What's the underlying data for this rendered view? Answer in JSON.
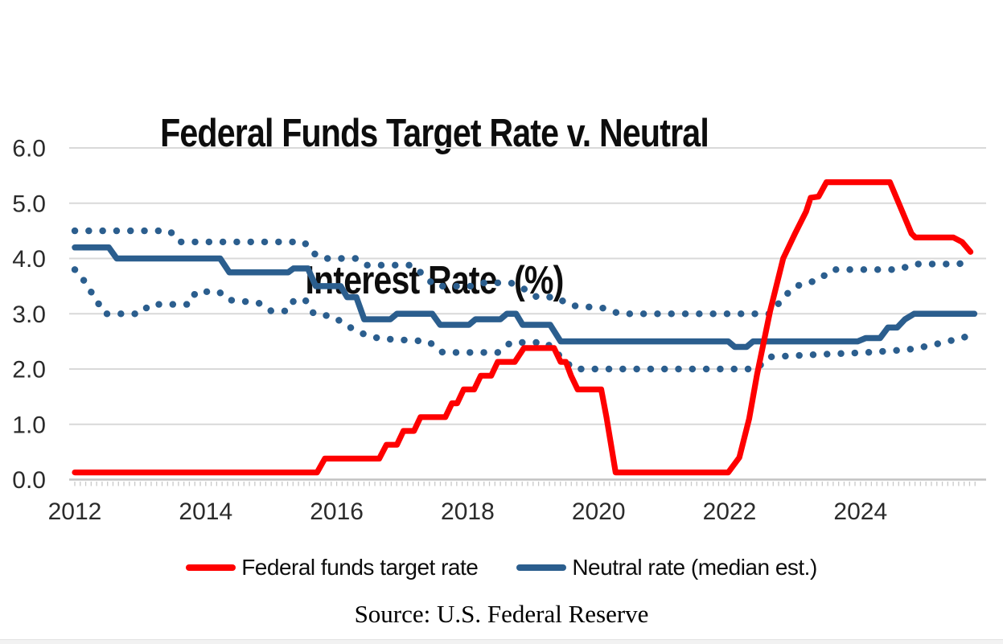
{
  "title": {
    "line1": "Federal Funds Target Rate v. Neutral",
    "line2": "Interest Rate  (%)"
  },
  "source_caption": "Source: U.S. Federal Reserve",
  "legend": {
    "items": [
      {
        "label": "Federal funds target rate",
        "color": "#FE0000",
        "style": "solid"
      },
      {
        "label": "Neutral rate (median est.)",
        "color": "#2B5E8E",
        "style": "solid"
      }
    ]
  },
  "colors": {
    "red_line": "#FE0000",
    "blue_line": "#2B5E8E",
    "gridline": "#D9D9D9",
    "axis_line": "#C2C2C2",
    "minor_tick": "#C9C9C9",
    "tick_label": "#2B2B2B",
    "background": "#FFFFFF",
    "footer_strip": "#F2F2F2"
  },
  "chart_data": {
    "type": "line",
    "title": "Federal Funds Target Rate v. Neutral Interest Rate (%)",
    "source_annotation": "Source: U.S. Federal Reserve",
    "legend_position": "bottom",
    "x_axis": {
      "range": [
        2011.9,
        2025.95
      ],
      "tick_labels": [
        "2012",
        "2014",
        "2016",
        "2018",
        "2020",
        "2022",
        "2024"
      ],
      "tick_values": [
        2012,
        2014,
        2016,
        2018,
        2020,
        2022,
        2024
      ],
      "minor_ticks": "monthly"
    },
    "y_axis": {
      "range": [
        0,
        6
      ],
      "tick_labels": [
        "0.0",
        "1.0",
        "2.0",
        "3.0",
        "4.0",
        "5.0",
        "6.0"
      ],
      "tick_values": [
        0,
        1,
        2,
        3,
        4,
        5,
        6
      ],
      "gridlines": true
    },
    "series": [
      {
        "name": "Federal funds target rate",
        "color": "#FE0000",
        "line_style": "solid",
        "in_legend": true,
        "points": [
          [
            2012.0,
            0.13
          ],
          [
            2015.7,
            0.13
          ],
          [
            2015.82,
            0.38
          ],
          [
            2016.65,
            0.38
          ],
          [
            2016.76,
            0.63
          ],
          [
            2016.92,
            0.63
          ],
          [
            2017.02,
            0.88
          ],
          [
            2017.18,
            0.88
          ],
          [
            2017.28,
            1.13
          ],
          [
            2017.66,
            1.13
          ],
          [
            2017.76,
            1.38
          ],
          [
            2017.84,
            1.38
          ],
          [
            2017.94,
            1.63
          ],
          [
            2018.1,
            1.63
          ],
          [
            2018.2,
            1.88
          ],
          [
            2018.36,
            1.88
          ],
          [
            2018.46,
            2.13
          ],
          [
            2018.72,
            2.13
          ],
          [
            2018.86,
            2.38
          ],
          [
            2019.32,
            2.38
          ],
          [
            2019.42,
            2.13
          ],
          [
            2019.5,
            2.13
          ],
          [
            2019.58,
            1.88
          ],
          [
            2019.68,
            1.63
          ],
          [
            2020.04,
            1.63
          ],
          [
            2020.12,
            1.13
          ],
          [
            2020.26,
            0.13
          ],
          [
            2021.98,
            0.13
          ],
          [
            2022.15,
            0.4
          ],
          [
            2022.3,
            1.1
          ],
          [
            2022.42,
            1.9
          ],
          [
            2022.62,
            3.05
          ],
          [
            2022.82,
            4.0
          ],
          [
            2023.0,
            4.45
          ],
          [
            2023.17,
            4.85
          ],
          [
            2023.24,
            5.1
          ],
          [
            2023.36,
            5.12
          ],
          [
            2023.48,
            5.38
          ],
          [
            2024.45,
            5.38
          ],
          [
            2024.62,
            4.9
          ],
          [
            2024.78,
            4.45
          ],
          [
            2024.84,
            4.38
          ],
          [
            2025.42,
            4.38
          ],
          [
            2025.55,
            4.3
          ],
          [
            2025.68,
            4.12
          ]
        ]
      },
      {
        "name": "Neutral rate (median est.)",
        "color": "#2B5E8E",
        "line_style": "solid",
        "in_legend": true,
        "points": [
          [
            2012.0,
            4.2
          ],
          [
            2012.52,
            4.2
          ],
          [
            2012.64,
            4.0
          ],
          [
            2014.22,
            4.0
          ],
          [
            2014.36,
            3.75
          ],
          [
            2015.26,
            3.75
          ],
          [
            2015.34,
            3.82
          ],
          [
            2015.56,
            3.82
          ],
          [
            2015.68,
            3.5
          ],
          [
            2016.06,
            3.5
          ],
          [
            2016.16,
            3.3
          ],
          [
            2016.3,
            3.3
          ],
          [
            2016.42,
            2.9
          ],
          [
            2016.82,
            2.9
          ],
          [
            2016.92,
            3.0
          ],
          [
            2017.46,
            3.0
          ],
          [
            2017.58,
            2.8
          ],
          [
            2018.02,
            2.8
          ],
          [
            2018.12,
            2.9
          ],
          [
            2018.5,
            2.9
          ],
          [
            2018.6,
            3.0
          ],
          [
            2018.74,
            3.0
          ],
          [
            2018.84,
            2.8
          ],
          [
            2019.26,
            2.8
          ],
          [
            2019.42,
            2.5
          ],
          [
            2021.98,
            2.5
          ],
          [
            2022.08,
            2.4
          ],
          [
            2022.26,
            2.4
          ],
          [
            2022.36,
            2.5
          ],
          [
            2023.96,
            2.5
          ],
          [
            2024.08,
            2.56
          ],
          [
            2024.3,
            2.56
          ],
          [
            2024.42,
            2.75
          ],
          [
            2024.56,
            2.75
          ],
          [
            2024.68,
            2.9
          ],
          [
            2024.82,
            3.0
          ],
          [
            2025.74,
            3.0
          ]
        ]
      },
      {
        "name": "Neutral rate high estimate (dotted)",
        "color": "#2B5E8E",
        "line_style": "dotted",
        "in_legend": false,
        "points": [
          [
            2012.0,
            4.5
          ],
          [
            2013.45,
            4.5
          ],
          [
            2013.6,
            4.3
          ],
          [
            2015.5,
            4.3
          ],
          [
            2015.64,
            4.1
          ],
          [
            2015.78,
            4.0
          ],
          [
            2016.3,
            4.0
          ],
          [
            2016.46,
            3.88
          ],
          [
            2017.15,
            3.88
          ],
          [
            2017.35,
            3.68
          ],
          [
            2017.5,
            3.5
          ],
          [
            2018.08,
            3.5
          ],
          [
            2018.25,
            3.56
          ],
          [
            2018.66,
            3.56
          ],
          [
            2018.86,
            3.45
          ],
          [
            2019.06,
            3.3
          ],
          [
            2019.36,
            3.3
          ],
          [
            2019.56,
            3.15
          ],
          [
            2020.1,
            3.1
          ],
          [
            2020.32,
            3.0
          ],
          [
            2022.6,
            3.0
          ],
          [
            2022.76,
            3.2
          ],
          [
            2022.95,
            3.45
          ],
          [
            2023.12,
            3.55
          ],
          [
            2023.35,
            3.6
          ],
          [
            2023.56,
            3.8
          ],
          [
            2024.6,
            3.8
          ],
          [
            2024.8,
            3.9
          ],
          [
            2025.5,
            3.9
          ],
          [
            2025.66,
            3.95
          ]
        ]
      },
      {
        "name": "Neutral rate low estimate (dotted)",
        "color": "#2B5E8E",
        "line_style": "dotted",
        "in_legend": false,
        "points": [
          [
            2012.0,
            3.8
          ],
          [
            2012.14,
            3.6
          ],
          [
            2012.3,
            3.3
          ],
          [
            2012.46,
            3.0
          ],
          [
            2013.0,
            3.0
          ],
          [
            2013.15,
            3.17
          ],
          [
            2013.75,
            3.17
          ],
          [
            2013.85,
            3.4
          ],
          [
            2014.2,
            3.4
          ],
          [
            2014.35,
            3.25
          ],
          [
            2014.8,
            3.2
          ],
          [
            2015.0,
            3.05
          ],
          [
            2015.25,
            3.05
          ],
          [
            2015.35,
            3.25
          ],
          [
            2015.52,
            3.25
          ],
          [
            2015.65,
            3.0
          ],
          [
            2015.95,
            2.95
          ],
          [
            2016.16,
            2.78
          ],
          [
            2016.42,
            2.63
          ],
          [
            2016.66,
            2.55
          ],
          [
            2017.4,
            2.5
          ],
          [
            2017.62,
            2.3
          ],
          [
            2018.46,
            2.3
          ],
          [
            2018.66,
            2.48
          ],
          [
            2019.2,
            2.48
          ],
          [
            2019.44,
            2.2
          ],
          [
            2019.62,
            2.0
          ],
          [
            2022.4,
            2.0
          ],
          [
            2022.62,
            2.22
          ],
          [
            2023.3,
            2.26
          ],
          [
            2024.1,
            2.3
          ],
          [
            2024.72,
            2.35
          ],
          [
            2025.05,
            2.42
          ],
          [
            2025.4,
            2.52
          ],
          [
            2025.66,
            2.6
          ]
        ]
      }
    ]
  }
}
